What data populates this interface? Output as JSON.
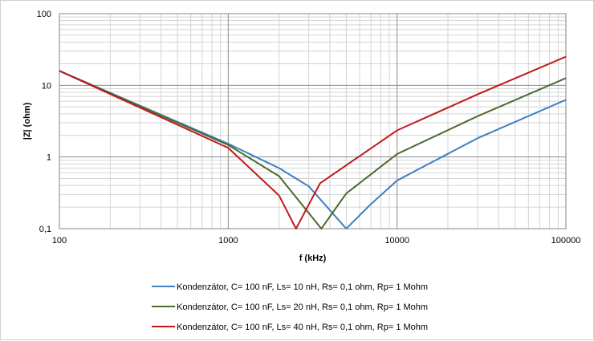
{
  "chart_data": {
    "type": "line",
    "xscale": "log",
    "yscale": "log",
    "xlabel": "f (kHz)",
    "ylabel": "|Z| (ohm)",
    "xlim": [
      100,
      100000
    ],
    "ylim": [
      0.1,
      100
    ],
    "x_tick_labels": [
      "100",
      "1000",
      "10000",
      "100000"
    ],
    "y_tick_labels": [
      "0,1",
      "1",
      "10",
      "100"
    ],
    "grid": "major and minor",
    "legend_position": "bottom",
    "series": [
      {
        "name": "Kondenzátor, C= 100 nF, Ls= 10 nH, Rs= 0,1 ohm, Rp= 1 Mohm",
        "color": "#3d7fbf",
        "C_nF": 100,
        "Ls_nH": 10,
        "Rs_ohm": 0.1,
        "Rp_Mohm": 1,
        "points": [
          [
            100,
            15.9
          ],
          [
            1000,
            1.53
          ],
          [
            2000,
            0.7
          ],
          [
            3000,
            0.39
          ],
          [
            5000,
            0.1
          ],
          [
            7000,
            0.22
          ],
          [
            10000,
            0.47
          ],
          [
            30000,
            1.83
          ],
          [
            100000,
            6.28
          ]
        ]
      },
      {
        "name": "Kondenzátor, C= 100 nF, Ls= 20 nH, Rs= 0,1 ohm, Rp= 1 Mohm",
        "color": "#4a6b2e",
        "C_nF": 100,
        "Ls_nH": 20,
        "Rs_ohm": 0.1,
        "Rp_Mohm": 1,
        "points": [
          [
            100,
            15.9
          ],
          [
            1000,
            1.47
          ],
          [
            2000,
            0.54
          ],
          [
            3560,
            0.1
          ],
          [
            5000,
            0.31
          ],
          [
            10000,
            1.1
          ],
          [
            30000,
            3.71
          ],
          [
            100000,
            12.6
          ]
        ]
      },
      {
        "name": "Kondenzátor, C= 100 nF, Ls= 40 nH, Rs= 0,1 ohm, Rp= 1 Mohm",
        "color": "#c0191e",
        "C_nF": 100,
        "Ls_nH": 40,
        "Rs_ohm": 0.1,
        "Rp_Mohm": 1,
        "points": [
          [
            100,
            15.9
          ],
          [
            1000,
            1.34
          ],
          [
            2000,
            0.29
          ],
          [
            2520,
            0.1
          ],
          [
            3500,
            0.43
          ],
          [
            10000,
            2.35
          ],
          [
            30000,
            7.49
          ],
          [
            100000,
            25.1
          ]
        ]
      }
    ]
  }
}
